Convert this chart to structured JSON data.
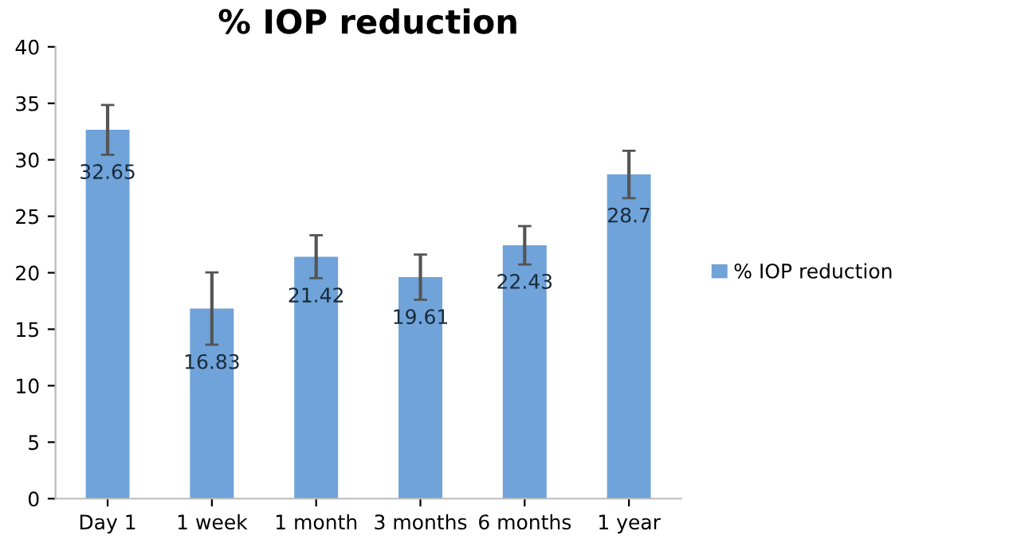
{
  "chart_data": {
    "type": "bar",
    "title": "% IOP reduction",
    "categories": [
      "Day 1",
      "1 week",
      "1 month",
      "3 months",
      "6 months",
      "1 year"
    ],
    "series": [
      {
        "name": "% IOP reduction",
        "color": "#6fa3d9",
        "values": [
          32.65,
          16.83,
          21.42,
          19.61,
          22.43,
          28.7
        ],
        "errors": [
          2.2,
          3.2,
          1.9,
          2.0,
          1.7,
          2.1
        ]
      }
    ],
    "ylim": [
      0,
      40
    ],
    "yticks": [
      0,
      5,
      10,
      15,
      20,
      25,
      30,
      35,
      40
    ],
    "grid": false,
    "legend": "right",
    "data_labels": true
  }
}
